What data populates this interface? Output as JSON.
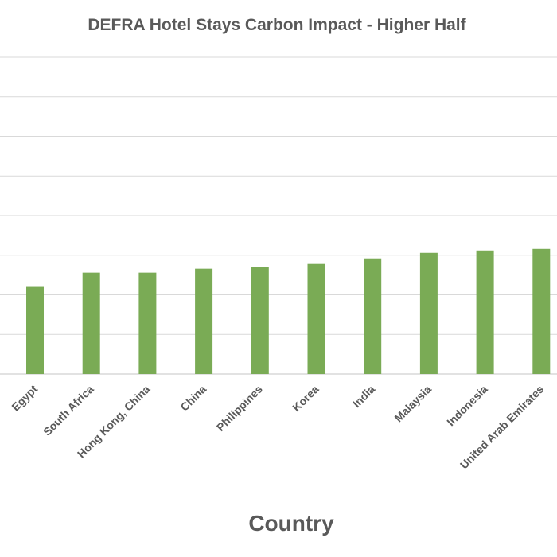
{
  "chart_data": {
    "type": "bar",
    "title": "DEFRA Hotel Stays Carbon Impact - Higher Half",
    "xlabel": "Country",
    "ylabel": "",
    "categories": [
      "Egypt",
      "South Africa",
      "Hong Kong, China",
      "China",
      "Philippines",
      "Korea",
      "India",
      "Malaysia",
      "Indonesia",
      "United Arab Emirates"
    ],
    "values": [
      2.2,
      2.56,
      2.56,
      2.66,
      2.7,
      2.78,
      2.92,
      3.06,
      3.12,
      3.16
    ],
    "ylim": [
      0,
      8
    ],
    "grid": true,
    "legend": "none",
    "bar_color": "#7aab55",
    "grid_color": "#d9d9d9",
    "text_color": "#595959"
  }
}
